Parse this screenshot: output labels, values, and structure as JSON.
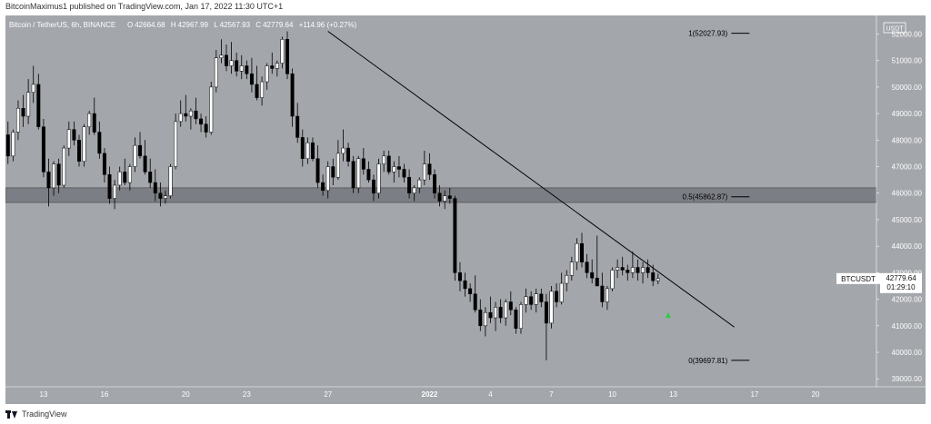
{
  "header": {
    "published_line": "BitcoinMaximus1 published on TradingView.com, Jan 17, 2022 11:30 UTC+1"
  },
  "footer": {
    "brand": "TradingView"
  },
  "colors": {
    "background": "#a3a6ab",
    "bull_body": "#ffffff",
    "bear_body": "#000000",
    "wick": "#000000",
    "zone_fill": "#7b7e84",
    "arrow": "#2ecc40",
    "axis_text": "#ffffff"
  },
  "chart_data": {
    "type": "candlestick",
    "symbol_line": {
      "name": "Bitcoin / TetherUS, 6h, BINANCE",
      "O_label": "O",
      "O": "42664.68",
      "H_label": "H",
      "H": "42967.99",
      "L_label": "L",
      "L": "42567.93",
      "C_label": "C",
      "C": "42779.64",
      "change": "+114.96 (+0.27%)"
    },
    "currency_badge": "USDT",
    "ylim": [
      38700,
      52700
    ],
    "y_ticks": [
      "52000.00",
      "51000.00",
      "50000.00",
      "49000.00",
      "48000.00",
      "47000.00",
      "46000.00",
      "45000.00",
      "44000.00",
      "43000.00",
      "42000.00",
      "41000.00",
      "40000.00",
      "39000.00"
    ],
    "x_ticks": [
      {
        "label": "13",
        "index": 7
      },
      {
        "label": "16",
        "index": 19
      },
      {
        "label": "20",
        "index": 35
      },
      {
        "label": "23",
        "index": 47
      },
      {
        "label": "27",
        "index": 63
      },
      {
        "label": "2022",
        "index": 83
      },
      {
        "label": "4",
        "index": 95
      },
      {
        "label": "7",
        "index": 107
      },
      {
        "label": "10",
        "index": 119
      },
      {
        "label": "13",
        "index": 131
      },
      {
        "label": "17",
        "index": 147
      },
      {
        "label": "20",
        "index": 159
      }
    ],
    "x_index_range": [
      -0.5,
      171
    ],
    "candles": [
      [
        48200,
        48700,
        47100,
        47400
      ],
      [
        47400,
        48400,
        47200,
        48300
      ],
      [
        48300,
        49500,
        48000,
        49200
      ],
      [
        49200,
        49700,
        48500,
        48900
      ],
      [
        48900,
        50300,
        48600,
        49800
      ],
      [
        49800,
        50800,
        49400,
        50100
      ],
      [
        50100,
        50500,
        48400,
        48500
      ],
      [
        48500,
        48800,
        46600,
        46800
      ],
      [
        46800,
        47300,
        45500,
        46200
      ],
      [
        46200,
        47200,
        45900,
        47100
      ],
      [
        47100,
        47300,
        46000,
        46300
      ],
      [
        46300,
        47800,
        46200,
        47700
      ],
      [
        47700,
        48700,
        47400,
        48400
      ],
      [
        48400,
        48700,
        47800,
        48000
      ],
      [
        48000,
        48200,
        47000,
        47200
      ],
      [
        47200,
        48600,
        47000,
        48500
      ],
      [
        48500,
        49100,
        48200,
        49000
      ],
      [
        49000,
        49600,
        48200,
        48300
      ],
      [
        48300,
        48700,
        47300,
        47500
      ],
      [
        47500,
        47700,
        46400,
        46700
      ],
      [
        46700,
        47000,
        45600,
        45800
      ],
      [
        45800,
        46500,
        45400,
        46300
      ],
      [
        46300,
        47000,
        46100,
        46800
      ],
      [
        46800,
        47300,
        46300,
        46400
      ],
      [
        46400,
        47100,
        46100,
        47000
      ],
      [
        47000,
        48100,
        46800,
        47800
      ],
      [
        47800,
        48300,
        47300,
        47400
      ],
      [
        47400,
        48000,
        46700,
        46800
      ],
      [
        46800,
        47300,
        46200,
        46400
      ],
      [
        46400,
        46900,
        45700,
        46000
      ],
      [
        46000,
        46400,
        45500,
        45800
      ],
      [
        45800,
        46100,
        45600,
        45900
      ],
      [
        45900,
        47100,
        45800,
        47000
      ],
      [
        47000,
        49000,
        46900,
        48700
      ],
      [
        48700,
        49500,
        48500,
        49000
      ],
      [
        49000,
        49700,
        48700,
        48900
      ],
      [
        48900,
        49200,
        48400,
        49100
      ],
      [
        49100,
        49600,
        48600,
        48800
      ],
      [
        48800,
        49000,
        48300,
        48600
      ],
      [
        48600,
        48900,
        48100,
        48300
      ],
      [
        48300,
        50200,
        48200,
        50000
      ],
      [
        50000,
        51400,
        49800,
        51100
      ],
      [
        51100,
        51800,
        50900,
        51200
      ],
      [
        51200,
        51600,
        50600,
        50800
      ],
      [
        50800,
        51700,
        50500,
        51000
      ],
      [
        51000,
        51300,
        50400,
        50600
      ],
      [
        50600,
        51200,
        50300,
        50800
      ],
      [
        50800,
        51000,
        50300,
        50500
      ],
      [
        50500,
        51100,
        49800,
        50100
      ],
      [
        50100,
        50800,
        49500,
        49600
      ],
      [
        49600,
        50400,
        49300,
        50200
      ],
      [
        50200,
        50900,
        49900,
        50800
      ],
      [
        50800,
        51300,
        50500,
        50700
      ],
      [
        50700,
        51000,
        50400,
        50900
      ],
      [
        50900,
        51900,
        50700,
        51800
      ],
      [
        51800,
        52100,
        50300,
        50500
      ],
      [
        50500,
        50700,
        48500,
        48900
      ],
      [
        48900,
        49400,
        47900,
        48100
      ],
      [
        48100,
        48400,
        47000,
        47300
      ],
      [
        47300,
        48100,
        47100,
        47900
      ],
      [
        47900,
        48100,
        47200,
        47300
      ],
      [
        47300,
        47800,
        46200,
        46400
      ],
      [
        46400,
        46700,
        45900,
        46100
      ],
      [
        46100,
        47200,
        45800,
        47000
      ],
      [
        47000,
        47300,
        46300,
        46600
      ],
      [
        46600,
        48000,
        46500,
        47500
      ],
      [
        47500,
        48400,
        47200,
        47700
      ],
      [
        47700,
        47900,
        47000,
        47200
      ],
      [
        47200,
        47400,
        46000,
        46200
      ],
      [
        46200,
        47400,
        46000,
        47300
      ],
      [
        47300,
        47700,
        46700,
        46900
      ],
      [
        46900,
        47200,
        46400,
        46500
      ],
      [
        46500,
        46700,
        45700,
        46000
      ],
      [
        46000,
        47300,
        45800,
        47100
      ],
      [
        47100,
        47600,
        46800,
        47400
      ],
      [
        47400,
        47600,
        46700,
        46800
      ],
      [
        46800,
        47200,
        46400,
        47000
      ],
      [
        47000,
        47400,
        46600,
        46900
      ],
      [
        46900,
        47100,
        46400,
        46600
      ],
      [
        46600,
        46900,
        45800,
        46000
      ],
      [
        46000,
        46300,
        45700,
        46200
      ],
      [
        46200,
        46600,
        46000,
        46500
      ],
      [
        46500,
        47600,
        46300,
        47100
      ],
      [
        47100,
        47500,
        46500,
        46700
      ],
      [
        46700,
        46900,
        45800,
        46000
      ],
      [
        46000,
        46300,
        45500,
        45700
      ],
      [
        45700,
        46100,
        45400,
        45900
      ],
      [
        45900,
        46200,
        45600,
        45800
      ],
      [
        45800,
        45900,
        42700,
        43000
      ],
      [
        43000,
        43400,
        42300,
        42700
      ],
      [
        42700,
        43000,
        42100,
        42400
      ],
      [
        42400,
        42600,
        41900,
        42200
      ],
      [
        42200,
        42900,
        41500,
        41600
      ],
      [
        41600,
        42000,
        40800,
        41000
      ],
      [
        41000,
        41700,
        40600,
        41500
      ],
      [
        41500,
        42100,
        41100,
        41300
      ],
      [
        41300,
        41900,
        40800,
        41700
      ],
      [
        41700,
        42000,
        41100,
        41300
      ],
      [
        41300,
        42000,
        41000,
        41900
      ],
      [
        41900,
        42300,
        41400,
        41600
      ],
      [
        41600,
        41700,
        40700,
        40900
      ],
      [
        40900,
        41900,
        40700,
        41800
      ],
      [
        41800,
        42400,
        41500,
        42100
      ],
      [
        42100,
        42300,
        41600,
        41800
      ],
      [
        41800,
        42400,
        41500,
        42200
      ],
      [
        42200,
        42400,
        41700,
        41900
      ],
      [
        41900,
        42200,
        39700,
        41100
      ],
      [
        41100,
        42500,
        40900,
        42300
      ],
      [
        42300,
        42600,
        41700,
        41900
      ],
      [
        41900,
        43000,
        41800,
        42600
      ],
      [
        42600,
        43100,
        42300,
        42900
      ],
      [
        42900,
        43600,
        42700,
        43400
      ],
      [
        43400,
        44300,
        43100,
        44100
      ],
      [
        44100,
        44500,
        43200,
        43400
      ],
      [
        43400,
        43700,
        42800,
        43000
      ],
      [
        43000,
        43500,
        42600,
        42800
      ],
      [
        42800,
        44400,
        42500,
        42500
      ],
      [
        42500,
        43000,
        41700,
        41900
      ],
      [
        41900,
        42500,
        41600,
        42400
      ],
      [
        42400,
        43200,
        42300,
        43100
      ],
      [
        43100,
        43500,
        42800,
        43200
      ],
      [
        43200,
        43600,
        42900,
        43100
      ],
      [
        43100,
        43300,
        42700,
        43000
      ],
      [
        43000,
        43800,
        42800,
        43200
      ],
      [
        43200,
        43500,
        42700,
        43000
      ],
      [
        43000,
        43400,
        42600,
        43200
      ],
      [
        43200,
        43500,
        42800,
        43000
      ],
      [
        43000,
        43300,
        42500,
        42700
      ],
      [
        42700,
        42967.99,
        42567.93,
        42779.64
      ]
    ],
    "trendline": {
      "from": {
        "index": 63,
        "value": 52100
      },
      "to": {
        "index": 143,
        "value": 40950
      }
    },
    "zone": {
      "x_from": -0.5,
      "x_to": 171,
      "low": 45650,
      "high": 46200
    },
    "fib_levels": [
      {
        "label": "1(52027.93)",
        "value": 52027.93
      },
      {
        "label": "0.5(45862.87)",
        "value": 45862.87
      },
      {
        "label": "0(39697.81)",
        "value": 39697.81
      }
    ],
    "fib_x_from": 132,
    "fib_x_to": 146,
    "arrow": {
      "index": 130,
      "value": 41400
    },
    "price_label": {
      "symbol": "BTCUSDT",
      "price": "42779.64",
      "countdown": "01:29:10",
      "value": 42779.64
    }
  }
}
